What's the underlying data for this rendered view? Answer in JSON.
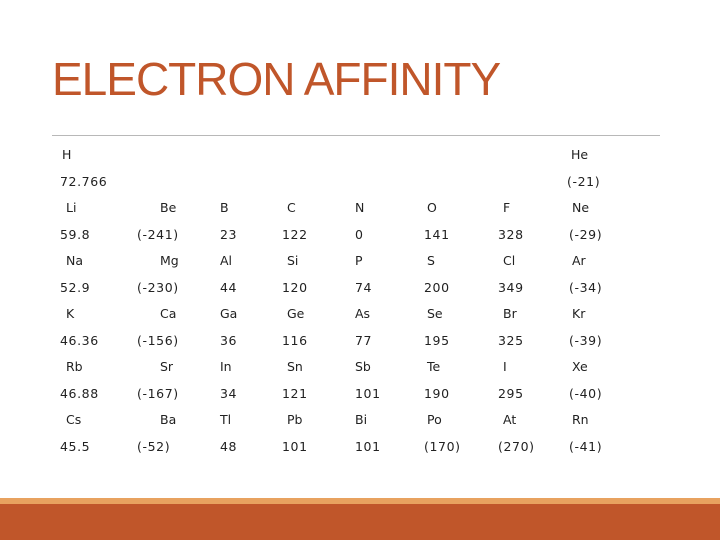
{
  "title": "ELECTRON AFFINITY",
  "rows": [
    [
      "H",
      "",
      "",
      "",
      "",
      "",
      "",
      "He"
    ],
    [
      "72.766",
      "",
      "",
      "",
      "",
      "",
      "",
      "(-21)"
    ],
    [
      "Li",
      "Be",
      "B",
      "C",
      "N",
      "O",
      "F",
      "Ne"
    ],
    [
      "59.8",
      "(-241)",
      "23",
      "122",
      "0",
      "141",
      "328",
      "(-29)"
    ],
    [
      "Na",
      "Mg",
      "Al",
      "Si",
      "P",
      "S",
      "Cl",
      "Ar"
    ],
    [
      "52.9",
      "(-230)",
      "44",
      "120",
      "74",
      "200",
      "349",
      "(-34)"
    ],
    [
      "K",
      "Ca",
      "Ga",
      "Ge",
      "As",
      "Se",
      "Br",
      "Kr"
    ],
    [
      "46.36",
      "(-156)",
      "36",
      "116",
      "77",
      "195",
      "325",
      "(-39)"
    ],
    [
      "Rb",
      "Sr",
      "In",
      "Sn",
      "Sb",
      "Te",
      "I",
      "Xe"
    ],
    [
      "46.88",
      "(-167)",
      "34",
      "121",
      "101",
      "190",
      "295",
      "(-40)"
    ],
    [
      "Cs",
      "Ba",
      "Tl",
      "Pb",
      "Bi",
      "Po",
      "At",
      "Rn"
    ],
    [
      "45.5",
      "(-52)",
      "48",
      "101",
      "101",
      "(170)",
      "(270)",
      "(-41)"
    ]
  ]
}
